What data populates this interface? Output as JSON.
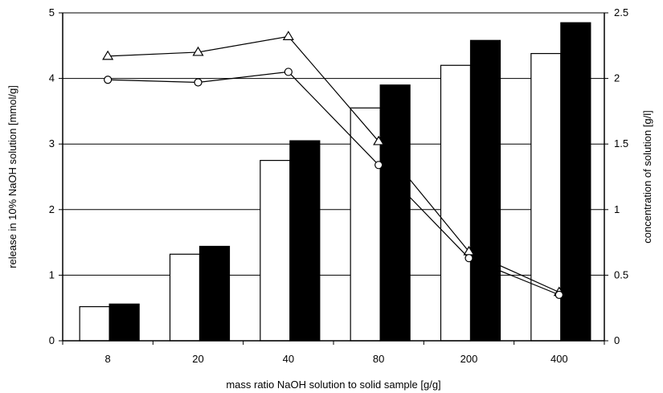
{
  "chart_data": {
    "type": "bar",
    "xlabel": "mass ratio NaOH solution to solid sample [g/g]",
    "ylabel_left": "release in 10% NaOH solution [mmol/g]",
    "ylabel_right": "concentration of solution [g/l]",
    "categories": [
      "8",
      "20",
      "40",
      "80",
      "200",
      "400"
    ],
    "ylim_left": [
      0,
      5
    ],
    "yticks_left": [
      "0",
      "1",
      "2",
      "3",
      "4",
      "5"
    ],
    "ylim_right": [
      0,
      2.5
    ],
    "yticks_right": [
      "0",
      "0.5",
      "1",
      "1.5",
      "2",
      "2.5"
    ],
    "grid": true,
    "bar_series": [
      {
        "values": [
          0.52,
          1.32,
          2.75,
          3.55,
          4.2,
          4.38
        ],
        "color": "#ffffff",
        "axis": "left"
      },
      {
        "values": [
          0.56,
          1.44,
          3.05,
          3.9,
          4.58,
          4.85
        ],
        "color": "#000000",
        "axis": "left"
      }
    ],
    "line_series": [
      {
        "marker": "triangle",
        "values": [
          2.17,
          2.2,
          2.32,
          1.52,
          0.68,
          0.37
        ],
        "axis": "right"
      },
      {
        "marker": "circle",
        "values": [
          1.99,
          1.97,
          2.05,
          1.34,
          0.63,
          0.35
        ],
        "axis": "right"
      }
    ]
  }
}
